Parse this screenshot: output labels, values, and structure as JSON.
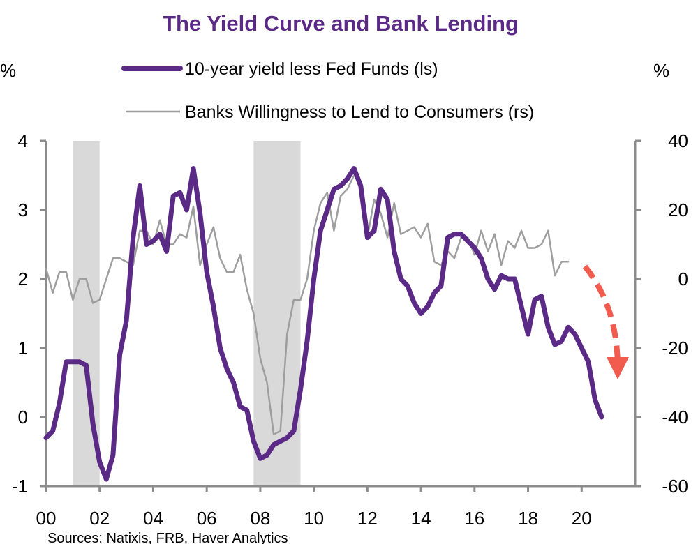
{
  "chart_data": {
    "type": "line",
    "title": "The Yield Curve and Bank Lending",
    "left_unit": "%",
    "right_unit": "%",
    "source": "Sources:  Natixis, FRB, Haver Analytics",
    "x_ticks": [
      "00",
      "02",
      "04",
      "06",
      "08",
      "10",
      "12",
      "14",
      "16",
      "18",
      "20"
    ],
    "y_left_ticks": [
      "4",
      "3",
      "2",
      "1",
      "0",
      "-1"
    ],
    "y_right_ticks": [
      "40",
      "20",
      "0",
      "-20",
      "-40",
      "-60"
    ],
    "xlim": [
      2000,
      2022
    ],
    "ylim_left": [
      -1,
      4
    ],
    "ylim_right": [
      -60,
      40
    ],
    "recessions": [
      [
        2001.0,
        2002.0
      ],
      [
        2007.75,
        2009.5
      ]
    ],
    "series": [
      {
        "name": "10-year yield less Fed Funds (ls)",
        "axis": "left",
        "color": "#5b2a86",
        "x": [
          2000.0,
          2000.25,
          2000.5,
          2000.75,
          2001.0,
          2001.25,
          2001.5,
          2001.75,
          2002.0,
          2002.25,
          2002.5,
          2002.75,
          2003.0,
          2003.25,
          2003.5,
          2003.75,
          2004.0,
          2004.25,
          2004.5,
          2004.75,
          2005.0,
          2005.25,
          2005.5,
          2005.75,
          2006.0,
          2006.25,
          2006.5,
          2006.75,
          2007.0,
          2007.25,
          2007.5,
          2007.75,
          2008.0,
          2008.25,
          2008.5,
          2008.75,
          2009.0,
          2009.25,
          2009.5,
          2009.75,
          2010.0,
          2010.25,
          2010.5,
          2010.75,
          2011.0,
          2011.25,
          2011.5,
          2011.75,
          2012.0,
          2012.25,
          2012.5,
          2012.75,
          2013.0,
          2013.25,
          2013.5,
          2013.75,
          2014.0,
          2014.25,
          2014.5,
          2014.75,
          2015.0,
          2015.25,
          2015.5,
          2015.75,
          2016.0,
          2016.25,
          2016.5,
          2016.75,
          2017.0,
          2017.25,
          2017.5,
          2017.75,
          2018.0,
          2018.25,
          2018.5,
          2018.75,
          2019.0,
          2019.25,
          2019.5,
          2019.75,
          2020.0,
          2020.25,
          2020.5,
          2020.75
        ],
        "values": [
          -0.3,
          -0.2,
          0.2,
          0.8,
          0.8,
          0.8,
          0.75,
          -0.1,
          -0.65,
          -0.9,
          -0.55,
          0.9,
          1.4,
          2.6,
          3.35,
          2.5,
          2.55,
          2.65,
          2.4,
          3.2,
          3.25,
          3.0,
          3.6,
          2.95,
          2.1,
          1.6,
          1.0,
          0.7,
          0.5,
          0.15,
          0.1,
          -0.35,
          -0.6,
          -0.55,
          -0.4,
          -0.35,
          -0.3,
          -0.2,
          0.4,
          1.1,
          2.0,
          2.7,
          3.0,
          3.3,
          3.35,
          3.45,
          3.6,
          3.35,
          2.6,
          2.7,
          3.3,
          3.15,
          2.4,
          2.0,
          1.9,
          1.65,
          1.5,
          1.6,
          1.8,
          1.9,
          2.6,
          2.65,
          2.65,
          2.55,
          2.45,
          2.3,
          2.0,
          1.85,
          2.05,
          2.0,
          2.0,
          1.6,
          1.2,
          1.7,
          1.75,
          1.3,
          1.05,
          1.1,
          1.3,
          1.2,
          1.0,
          0.8,
          0.25,
          0.0
        ]
      },
      {
        "name": "Banks Willingness to Lend to Consumers (rs)",
        "axis": "right",
        "color": "#9e9e9e",
        "x": [
          2000.0,
          2000.25,
          2000.5,
          2000.75,
          2001.0,
          2001.25,
          2001.5,
          2001.75,
          2002.0,
          2002.25,
          2002.5,
          2002.75,
          2003.0,
          2003.25,
          2003.5,
          2003.75,
          2004.0,
          2004.25,
          2004.5,
          2004.75,
          2005.0,
          2005.25,
          2005.5,
          2005.75,
          2006.0,
          2006.25,
          2006.5,
          2006.75,
          2007.0,
          2007.25,
          2007.5,
          2007.75,
          2008.0,
          2008.25,
          2008.5,
          2008.75,
          2009.0,
          2009.25,
          2009.5,
          2009.75,
          2010.0,
          2010.25,
          2010.5,
          2010.75,
          2011.0,
          2011.25,
          2011.5,
          2011.75,
          2012.0,
          2012.25,
          2012.5,
          2012.75,
          2013.0,
          2013.25,
          2013.5,
          2013.75,
          2014.0,
          2014.25,
          2014.5,
          2014.75,
          2015.0,
          2015.25,
          2015.5,
          2015.75,
          2016.0,
          2016.25,
          2016.5,
          2016.75,
          2017.0,
          2017.25,
          2017.5,
          2017.75,
          2018.0,
          2018.25,
          2018.5,
          2018.75,
          2019.0,
          2019.25,
          2019.5
        ],
        "values": [
          3,
          -4,
          2,
          2,
          -6,
          0,
          0,
          -7,
          -6,
          0,
          6,
          6,
          5,
          4,
          14,
          14,
          10,
          17,
          10,
          10,
          13,
          12,
          21,
          4,
          10,
          15,
          6,
          2,
          2,
          7,
          -3,
          -10,
          -23,
          -30,
          -45,
          -44,
          -16,
          -6,
          -6,
          0,
          14,
          22,
          25,
          14,
          24,
          26,
          30,
          28,
          12,
          23,
          19,
          12,
          22,
          13,
          14,
          15,
          12,
          16,
          5,
          4,
          8,
          6,
          12,
          12,
          7,
          14,
          8,
          13,
          4,
          11,
          9,
          14,
          9,
          9,
          10,
          14,
          1,
          5,
          5
        ]
      }
    ],
    "annotation": "dashed-red-down-arrow"
  }
}
